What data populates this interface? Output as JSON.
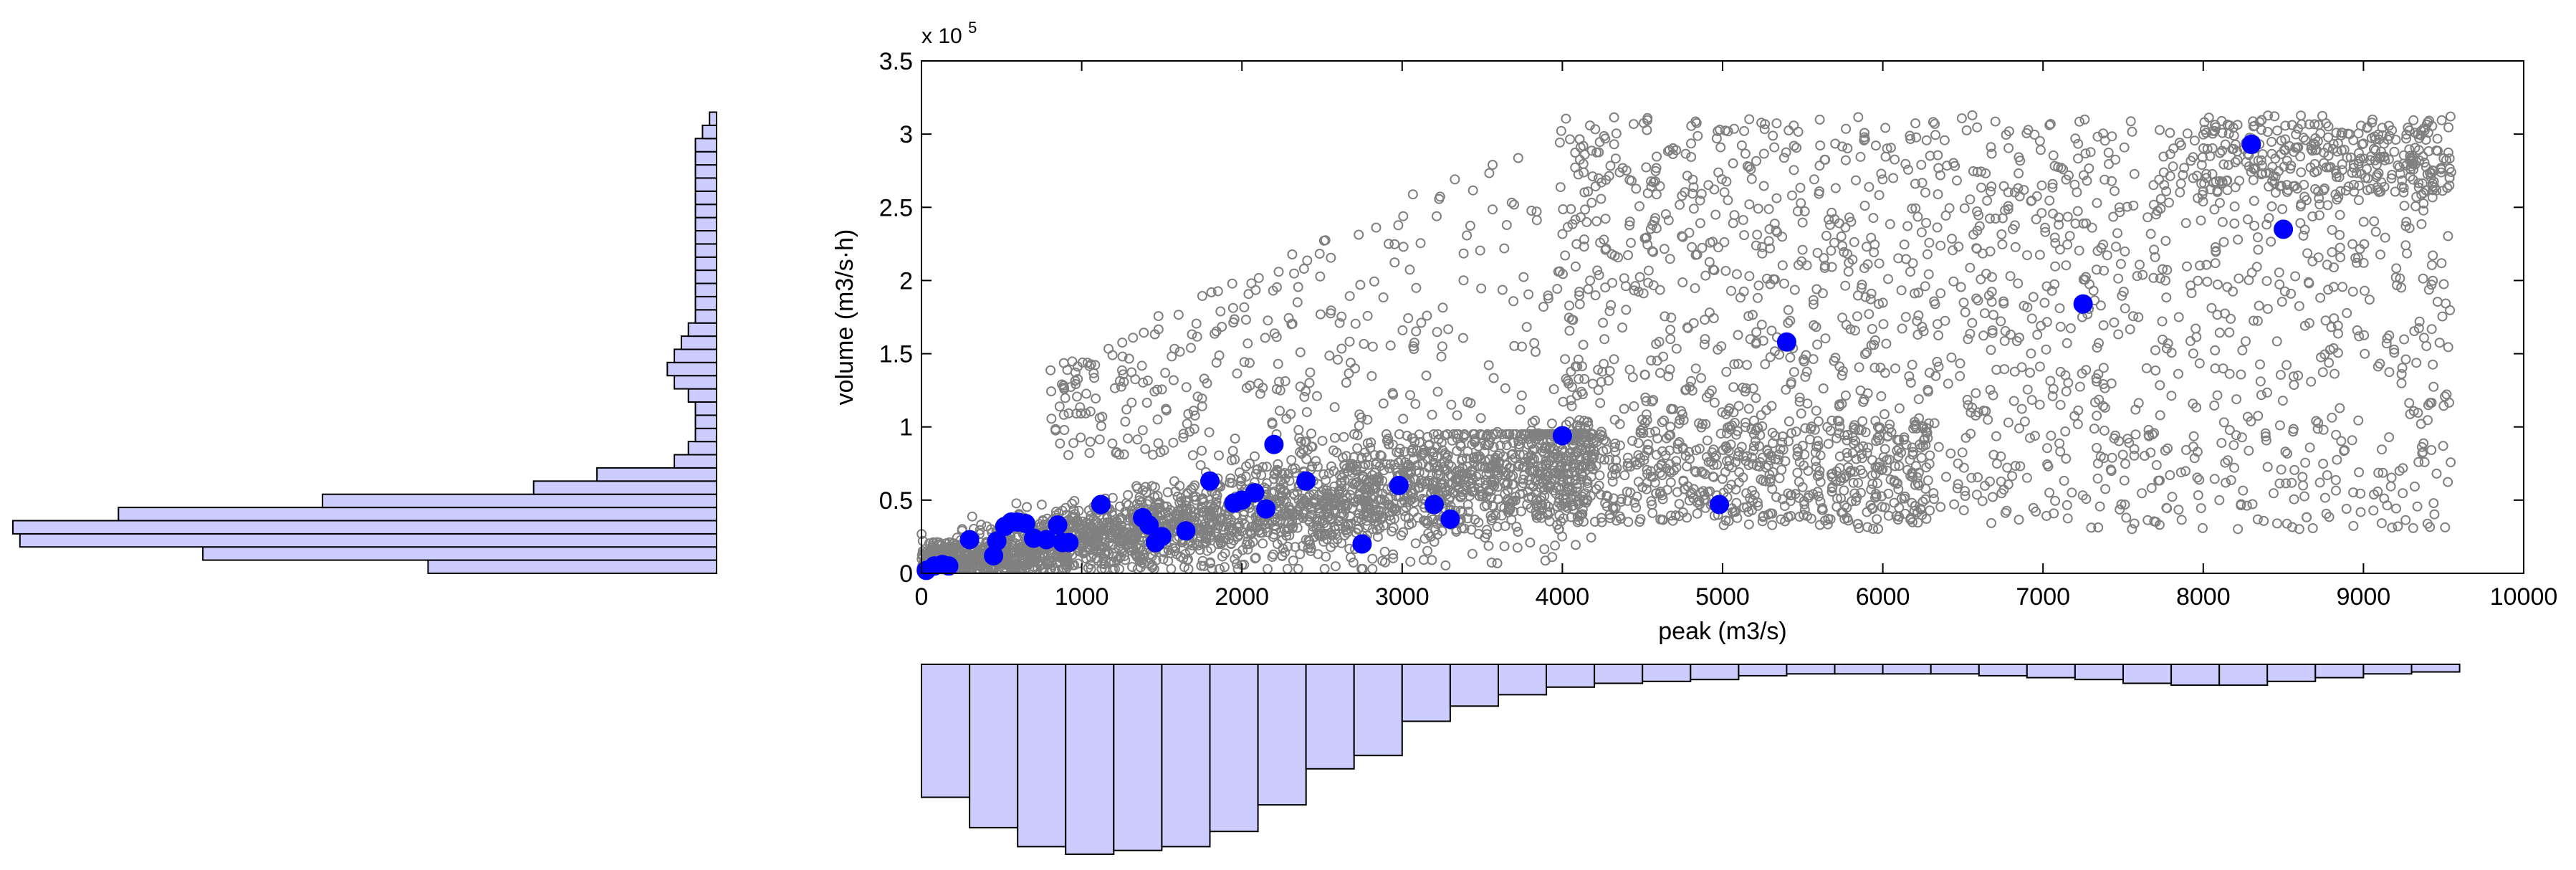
{
  "chart_data": [
    {
      "type": "scatter",
      "xlabel": "peak (m3/s)",
      "ylabel": "volume (m3/s·h)",
      "y_exponent_label": "x 10",
      "y_exponent": "5",
      "xlim": [
        0,
        10000
      ],
      "ylim": [
        0,
        3.5
      ],
      "y_scale_note": "y values in units of 1e5",
      "x_ticks": [
        "0",
        "1000",
        "2000",
        "3000",
        "4000",
        "5000",
        "6000",
        "7000",
        "8000",
        "9000",
        "10000"
      ],
      "y_ticks": [
        "0",
        "0.5",
        "1",
        "1.5",
        "2",
        "2.5",
        "3",
        "3.5"
      ],
      "grid": false,
      "colors": {
        "simulated": "#808080",
        "observed": "#0000ff"
      },
      "series": [
        {
          "marker": "open-circle",
          "color": "#808080",
          "description_of_cloud": [
            {
              "x_range": [
                0,
                4000
              ],
              "y_center_slope": 2.2e-05,
              "y_spread": [
                0.05,
                0.9
              ],
              "density": "very high"
            },
            {
              "x_range": [
                800,
                4500
              ],
              "y_range": [
                0.9,
                3.1
              ],
              "density": "sparse"
            },
            {
              "x_range": [
                4000,
                9600
              ],
              "y_range": [
                0.3,
                3.15
              ],
              "density": "moderate"
            }
          ]
        },
        {
          "marker": "filled-circle",
          "color": "#0000ff",
          "x": [
            30,
            80,
            130,
            170,
            300,
            450,
            470,
            520,
            560,
            600,
            650,
            700,
            780,
            850,
            880,
            920,
            1120,
            1380,
            1420,
            1460,
            1500,
            1650,
            1800,
            1950,
            2000,
            2080,
            2150,
            2200,
            2400,
            2750,
            2980,
            3200,
            3300,
            4000,
            4980,
            5400,
            7250,
            8300,
            8500
          ],
          "y": [
            0.02,
            0.05,
            0.06,
            0.05,
            0.23,
            0.12,
            0.22,
            0.32,
            0.35,
            0.35,
            0.34,
            0.24,
            0.23,
            0.33,
            0.21,
            0.21,
            0.47,
            0.38,
            0.33,
            0.21,
            0.25,
            0.29,
            0.63,
            0.48,
            0.5,
            0.55,
            0.44,
            0.88,
            0.63,
            0.2,
            0.6,
            0.47,
            0.37,
            0.94,
            0.47,
            1.58,
            1.84,
            2.93,
            2.35
          ]
        }
      ]
    },
    {
      "type": "bar",
      "orientation": "horizontal",
      "role": "marginal histogram of volume",
      "bin_edges_note": "bins aligned with the y axis of the scatter plot, bars extend leftward",
      "bin_count": 35,
      "bin_width": 0.09,
      "values": [
        0.41,
        0.73,
        0.99,
        1.0,
        0.85,
        0.56,
        0.26,
        0.17,
        0.06,
        0.04,
        0.03,
        0.03,
        0.03,
        0.04,
        0.06,
        0.07,
        0.06,
        0.05,
        0.04,
        0.03,
        0.03,
        0.03,
        0.03,
        0.03,
        0.03,
        0.03,
        0.03,
        0.03,
        0.03,
        0.03,
        0.03,
        0.03,
        0.03,
        0.02,
        0.01
      ],
      "color": "#ccccff"
    },
    {
      "type": "bar",
      "orientation": "vertical-down",
      "role": "marginal histogram of peak",
      "bin_edges_note": "bins aligned with the x axis of the scatter plot, bars extend downward",
      "bin_count": 32,
      "bin_width": 300,
      "values": [
        0.7,
        0.86,
        0.96,
        1.0,
        0.98,
        0.96,
        0.88,
        0.74,
        0.55,
        0.48,
        0.3,
        0.22,
        0.16,
        0.12,
        0.1,
        0.09,
        0.08,
        0.06,
        0.05,
        0.05,
        0.05,
        0.05,
        0.06,
        0.07,
        0.08,
        0.1,
        0.11,
        0.11,
        0.09,
        0.07,
        0.05,
        0.04
      ],
      "color": "#ccccff"
    }
  ]
}
